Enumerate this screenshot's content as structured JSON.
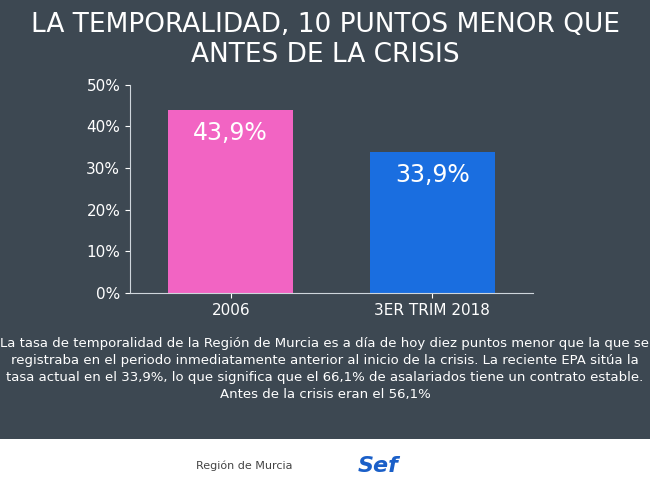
{
  "chart_data": {
    "type": "bar",
    "title": "LA TEMPORALIDAD, 10 PUNTOS MENOR QUE ANTES DE LA CRISIS",
    "categories": [
      "2006",
      "3ER TRIM 2018"
    ],
    "values": [
      43.9,
      33.9
    ],
    "value_labels": [
      "43,9%",
      "33,9%"
    ],
    "colors": [
      "#f264c3",
      "#1a6ee0"
    ],
    "data_labels": true,
    "ylim": [
      0,
      50
    ],
    "yticks": [
      {
        "value": 0,
        "label": "0%"
      },
      {
        "value": 10,
        "label": "10%"
      },
      {
        "value": 20,
        "label": "20%"
      },
      {
        "value": 30,
        "label": "30%"
      },
      {
        "value": 40,
        "label": "40%"
      },
      {
        "value": 50,
        "label": "50%"
      }
    ],
    "grid": false,
    "annotations": [
      "La tasa de temporalidad de la Región de Murcia es a día de hoy diez puntos menor que la que se registraba en el periodo inmediatamente anterior al inicio de la crisis. La reciente EPA sitúa la tasa actual en el 33,9%, lo que significa que el 66,1% de asalariados tiene un contrato estable. Antes de la crisis eran el 56,1%",
      "Región de Murcia",
      "Sef"
    ]
  }
}
